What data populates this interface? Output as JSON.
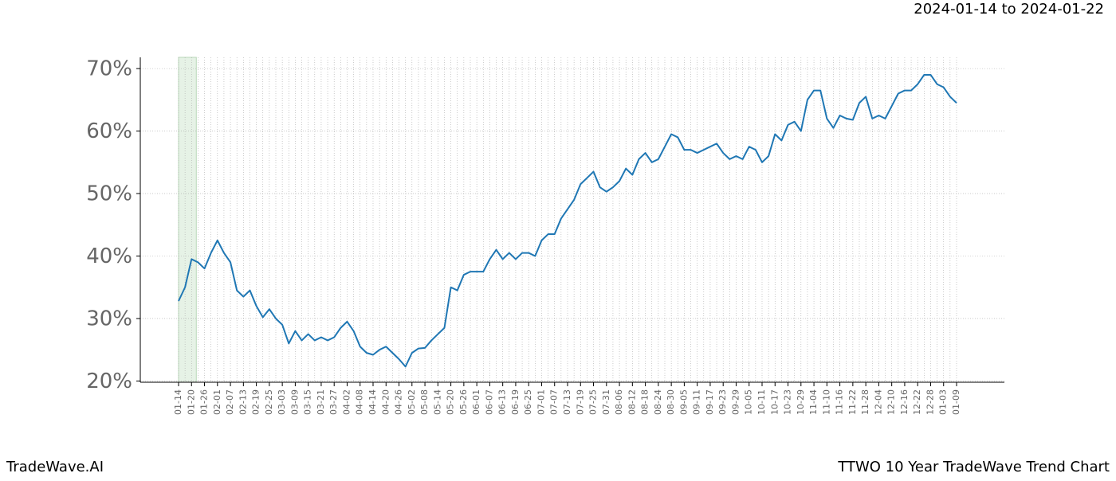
{
  "chart_data": {
    "type": "line",
    "title": "TTWO 10 Year TradeWave Trend Chart",
    "subtitle": "2024-01-14 to 2024-01-22",
    "brand": "TradeWave.AI",
    "categories": [
      "01-14",
      null,
      "01-20",
      null,
      "01-26",
      null,
      "02-01",
      null,
      "02-07",
      null,
      "02-13",
      null,
      "02-19",
      null,
      "02-25",
      null,
      "03-03",
      null,
      "03-09",
      null,
      "03-15",
      null,
      "03-21",
      null,
      "03-27",
      null,
      "04-02",
      null,
      "04-08",
      null,
      "04-14",
      null,
      "04-20",
      null,
      "04-26",
      null,
      "05-02",
      null,
      "05-08",
      null,
      "05-14",
      null,
      "05-20",
      null,
      "05-26",
      null,
      "06-01",
      null,
      "06-07",
      null,
      "06-13",
      null,
      "06-19",
      null,
      "06-25",
      null,
      "07-01",
      null,
      "07-07",
      null,
      "07-13",
      null,
      "07-19",
      null,
      "07-25",
      null,
      "07-31",
      null,
      "08-06",
      null,
      "08-12",
      null,
      "08-18",
      null,
      "08-24",
      null,
      "08-30",
      null,
      "09-05",
      null,
      "09-11",
      null,
      "09-17",
      null,
      "09-23",
      null,
      "09-29",
      null,
      "10-05",
      null,
      "10-11",
      null,
      "10-17",
      null,
      "10-23",
      null,
      "10-29",
      null,
      "11-04",
      null,
      "11-10",
      null,
      "11-16",
      null,
      "11-22",
      null,
      "11-28",
      null,
      "12-04",
      null,
      "12-10",
      null,
      "12-16",
      null,
      "12-22",
      null,
      "12-28",
      null,
      "01-03",
      null,
      "01-09"
    ],
    "series": [
      {
        "color": "#1f77b4",
        "values": [
          32.8,
          35,
          39.5,
          39,
          38,
          40.5,
          42.5,
          40.5,
          39,
          34.5,
          33.5,
          34.5,
          32,
          30.2,
          31.5,
          30,
          29,
          26,
          28,
          26.5,
          27.5,
          26.5,
          27,
          26.5,
          27,
          28.5,
          29.5,
          28,
          25.5,
          24.5,
          24.2,
          25,
          25.5,
          24.5,
          23.5,
          22.3,
          24.5,
          25.2,
          25.3,
          26.5,
          27.5,
          28.5,
          35,
          34.5,
          37,
          37.5,
          37.5,
          37.5,
          39.5,
          41,
          39.5,
          40.5,
          39.5,
          40.5,
          40.5,
          40,
          42.5,
          43.5,
          43.5,
          46,
          47.5,
          49,
          51.5,
          52.5,
          53.5,
          51,
          50.3,
          51,
          52,
          54,
          53,
          55.5,
          56.5,
          55,
          55.5,
          57.5,
          59.5,
          59,
          57,
          57,
          56.5,
          57,
          57.5,
          58,
          56.5,
          55.5,
          56,
          55.5,
          57.5,
          57,
          55,
          56,
          59.5,
          58.5,
          61,
          61.5,
          60,
          65,
          66.5,
          66.5,
          62,
          60.5,
          62.5,
          62,
          61.8,
          64.5,
          65.5,
          62,
          62.5,
          62,
          64,
          66,
          66.5,
          66.5,
          67.5,
          69,
          69,
          67.5,
          67,
          65.5,
          64.5
        ]
      }
    ],
    "highlight": [
      0,
      2
    ],
    "highlight_color": "#e6f2e6",
    "ylim": [
      19.8,
      71.8
    ],
    "yticks": [
      {
        "value": 20,
        "label": "20%"
      },
      {
        "value": 30,
        "label": "30%"
      },
      {
        "value": 40,
        "label": "40%"
      },
      {
        "value": 50,
        "label": "50%"
      },
      {
        "value": 60,
        "label": "60%"
      },
      {
        "value": 70,
        "label": "70%"
      }
    ],
    "grid": true
  }
}
